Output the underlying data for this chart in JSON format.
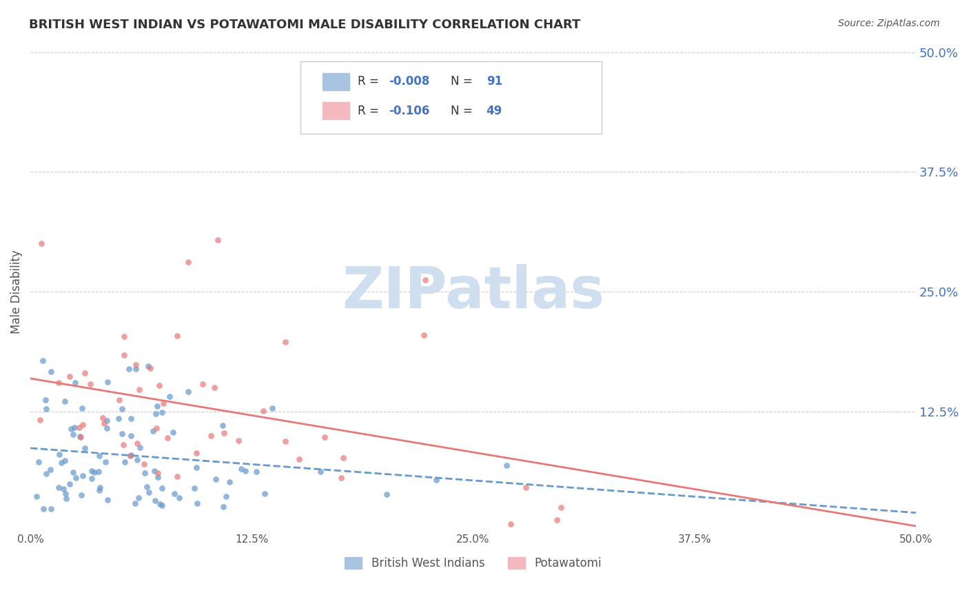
{
  "title": "BRITISH WEST INDIAN VS POTAWATOMI MALE DISABILITY CORRELATION CHART",
  "source": "Source: ZipAtlas.com",
  "xlabel_bottom": "",
  "ylabel": "Male Disability",
  "xlim": [
    0.0,
    0.5
  ],
  "ylim": [
    0.0,
    0.5
  ],
  "xticks": [
    0.0,
    0.125,
    0.25,
    0.375,
    0.5
  ],
  "xtick_labels": [
    "0.0%",
    "12.5%",
    "25.0%",
    "37.5%",
    "50.0%"
  ],
  "yticks_right": [
    0.125,
    0.25,
    0.375,
    0.5
  ],
  "ytick_labels_right": [
    "12.5%",
    "25.0%",
    "37.5%",
    "50.0%"
  ],
  "legend_entries": [
    {
      "label": "R = -0.008   N = 91",
      "color": "#a8c4e0",
      "text_color": "#4472c4"
    },
    {
      "label": "R = -0.106   N = 49",
      "color": "#f4b8c1",
      "text_color": "#c0504d"
    }
  ],
  "legend_labels_bottom": [
    "British West Indians",
    "Potawatomi"
  ],
  "series1_color": "#6699cc",
  "series2_color": "#e87878",
  "series1_R": -0.008,
  "series1_N": 91,
  "series2_R": -0.106,
  "series2_N": 49,
  "watermark": "ZIPatlas",
  "watermark_color": "#d0dff0",
  "background_color": "#ffffff",
  "grid_color": "#cccccc",
  "title_color": "#333333",
  "axis_label_color": "#555555",
  "right_tick_color": "#4472c4",
  "seed1": 42,
  "seed2": 99
}
